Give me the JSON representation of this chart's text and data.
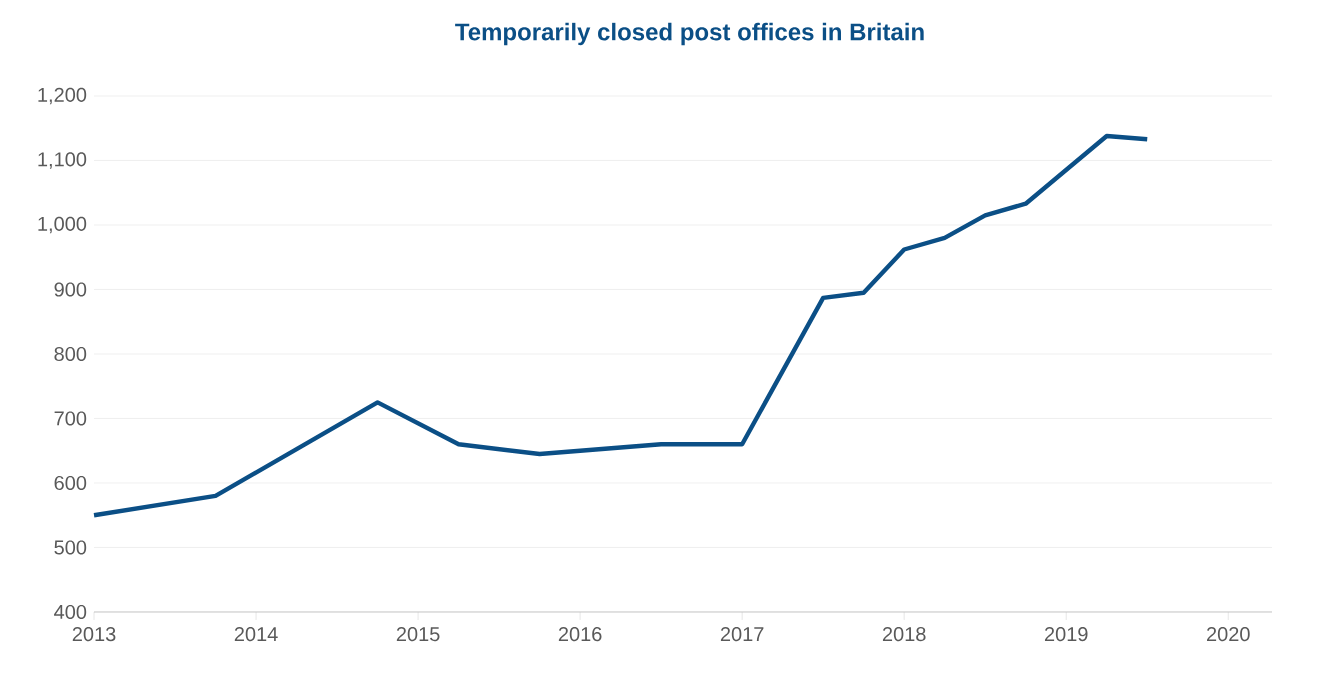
{
  "chart_data": {
    "type": "line",
    "title": "Temporarily closed post offices in Britain",
    "x": [
      2013.0,
      2013.75,
      2014.75,
      2015.25,
      2015.75,
      2016.5,
      2017.0,
      2017.5,
      2017.75,
      2018.0,
      2018.25,
      2018.5,
      2018.75,
      2019.25,
      2019.5
    ],
    "series": [
      {
        "color": "#0b4f86",
        "values": [
          550,
          580,
          725,
          660,
          645,
          660,
          660,
          887,
          895,
          962,
          980,
          1015,
          1033,
          1138,
          1133
        ]
      }
    ],
    "xlim": [
      2013,
      2020.27
    ],
    "xticks": [
      2013,
      2014,
      2015,
      2016,
      2017,
      2018,
      2019,
      2020
    ],
    "ylim": [
      400,
      1200
    ],
    "yticks": [
      {
        "value": 400,
        "label": "400"
      },
      {
        "value": 500,
        "label": "500"
      },
      {
        "value": 600,
        "label": "600"
      },
      {
        "value": 700,
        "label": "700"
      },
      {
        "value": 800,
        "label": "800"
      },
      {
        "value": 900,
        "label": "900"
      },
      {
        "value": 1000,
        "label": "1,000"
      },
      {
        "value": 1100,
        "label": "1,100"
      },
      {
        "value": 1200,
        "label": "1,200"
      }
    ],
    "grid": "y",
    "marker": "none",
    "line_style": "solid"
  }
}
